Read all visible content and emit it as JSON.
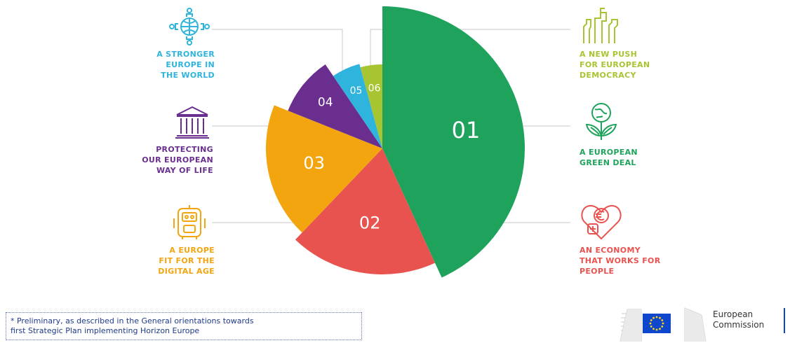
{
  "chart_data": {
    "type": "pie",
    "slices": [
      {
        "label": "01",
        "value": 41,
        "color": "#1fa35c",
        "radius": 203
      },
      {
        "label": "02",
        "value": 18,
        "color": "#e8534f",
        "radius": 180
      },
      {
        "label": "03",
        "value": 18,
        "color": "#f3a50f",
        "radius": 166
      },
      {
        "label": "04",
        "value": 9,
        "color": "#6a2f8e",
        "radius": 145
      },
      {
        "label": "05",
        "value": 5,
        "color": "#2fb4dd",
        "radius": 125
      },
      {
        "label": "06",
        "value": 4,
        "color": "#a7c531",
        "radius": 120
      }
    ],
    "priorities": [
      {
        "number": "01",
        "name": "A EUROPEAN\nGREEN DEAL",
        "icon": "globe-plant-icon",
        "color": "#1fa35c"
      },
      {
        "number": "02",
        "name": "AN ECONOMY\nTHAT WORKS FOR\nPEOPLE",
        "icon": "euro-heart-icon",
        "color": "#e8534f"
      },
      {
        "number": "03",
        "name": "A EUROPE\nFIT FOR THE\nDIGITAL AGE",
        "icon": "robot-icon",
        "color": "#f3a50f"
      },
      {
        "number": "04",
        "name": "PROTECTING\nOUR EUROPEAN\nWAY OF LIFE",
        "icon": "temple-icon",
        "color": "#6a2f8e"
      },
      {
        "number": "05",
        "name": "A STRONGER\nEUROPE IN\nTHE WORLD",
        "icon": "globe-people-icon",
        "color": "#2fb4dd"
      },
      {
        "number": "06",
        "name": "A NEW PUSH\nFOR EUROPEAN\nDEMOCRACY",
        "icon": "raised-hands-icon",
        "color": "#a7c531"
      }
    ]
  },
  "footnote": "* Preliminary, as described in the General orientations towards\nfirst Strategic Plan implementing Horizon Europe",
  "logo": {
    "text": "European\nCommission",
    "flag_color": "#0e47cb",
    "star_color": "#ffd617"
  }
}
